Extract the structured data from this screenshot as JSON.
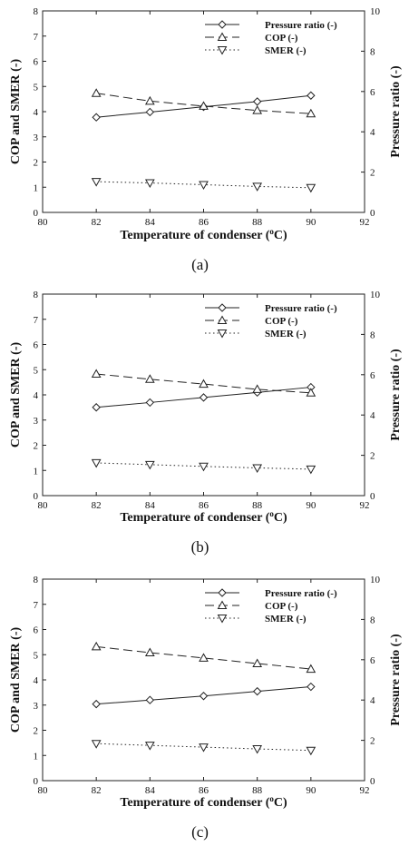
{
  "chart_data": [
    {
      "type": "line",
      "caption": "(a)",
      "x": [
        82,
        84,
        86,
        88,
        90
      ],
      "xlabel": "Temperature of condenser (°C)",
      "ylabel": "COP and SMER (-)",
      "ylabel_right": "Pressure ratio (-)",
      "xlim": [
        80,
        92
      ],
      "ylim": [
        0,
        8
      ],
      "ylim_right": [
        0,
        10
      ],
      "xticks": [
        80,
        82,
        84,
        86,
        88,
        90,
        92
      ],
      "yticks": [
        0,
        1,
        2,
        3,
        4,
        5,
        6,
        7,
        8
      ],
      "yticks_right": [
        0,
        2,
        4,
        6,
        8,
        10
      ],
      "grid": false,
      "legend_position": "top-right",
      "series": [
        {
          "name": "Pressure ratio (-)",
          "axis": "right",
          "marker": "diamond",
          "line": "solid",
          "values": [
            4.72,
            4.98,
            5.24,
            5.5,
            5.8
          ]
        },
        {
          "name": "COP (-)",
          "axis": "left",
          "marker": "triangle-up",
          "line": "dashed",
          "values": [
            4.73,
            4.42,
            4.22,
            4.05,
            3.92
          ]
        },
        {
          "name": "SMER (-)",
          "axis": "left",
          "marker": "triangle-down",
          "line": "dotted",
          "values": [
            1.22,
            1.17,
            1.1,
            1.03,
            0.98
          ]
        }
      ]
    },
    {
      "type": "line",
      "caption": "(b)",
      "x": [
        82,
        84,
        86,
        88,
        90
      ],
      "xlabel": "Temperature of condenser (°C)",
      "ylabel": "COP and SMER (-)",
      "ylabel_right": "Pressure ratio (-)",
      "xlim": [
        80,
        92
      ],
      "ylim": [
        0,
        8
      ],
      "ylim_right": [
        0,
        10
      ],
      "xticks": [
        80,
        82,
        84,
        86,
        88,
        90,
        92
      ],
      "yticks": [
        0,
        1,
        2,
        3,
        4,
        5,
        6,
        7,
        8
      ],
      "yticks_right": [
        0,
        2,
        4,
        6,
        8,
        10
      ],
      "grid": false,
      "legend_position": "top-right",
      "series": [
        {
          "name": "Pressure ratio (-)",
          "axis": "right",
          "marker": "diamond",
          "line": "solid",
          "values": [
            4.38,
            4.62,
            4.87,
            5.12,
            5.38
          ]
        },
        {
          "name": "COP (-)",
          "axis": "left",
          "marker": "triangle-up",
          "line": "dashed",
          "values": [
            4.83,
            4.62,
            4.43,
            4.22,
            4.08
          ]
        },
        {
          "name": "SMER (-)",
          "axis": "left",
          "marker": "triangle-down",
          "line": "dotted",
          "values": [
            1.3,
            1.23,
            1.16,
            1.1,
            1.05
          ]
        }
      ]
    },
    {
      "type": "line",
      "caption": "(c)",
      "x": [
        82,
        84,
        86,
        88,
        90
      ],
      "xlabel": "Temperature of condenser (°C)",
      "ylabel": "COP and SMER (-)",
      "ylabel_right": "Pressure ratio (-)",
      "xlim": [
        80,
        92
      ],
      "ylim": [
        0,
        8
      ],
      "ylim_right": [
        0,
        10
      ],
      "xticks": [
        80,
        82,
        84,
        86,
        88,
        90,
        92
      ],
      "yticks": [
        0,
        1,
        2,
        3,
        4,
        5,
        6,
        7,
        8
      ],
      "yticks_right": [
        0,
        2,
        4,
        6,
        8,
        10
      ],
      "grid": false,
      "legend_position": "top-right",
      "series": [
        {
          "name": "Pressure ratio (-)",
          "axis": "right",
          "marker": "diamond",
          "line": "solid",
          "values": [
            3.8,
            4.0,
            4.2,
            4.43,
            4.66
          ]
        },
        {
          "name": "COP (-)",
          "axis": "left",
          "marker": "triangle-up",
          "line": "dashed",
          "values": [
            5.32,
            5.08,
            4.87,
            4.65,
            4.43
          ]
        },
        {
          "name": "SMER (-)",
          "axis": "left",
          "marker": "triangle-down",
          "line": "dotted",
          "values": [
            1.47,
            1.4,
            1.33,
            1.26,
            1.2
          ]
        }
      ]
    }
  ]
}
